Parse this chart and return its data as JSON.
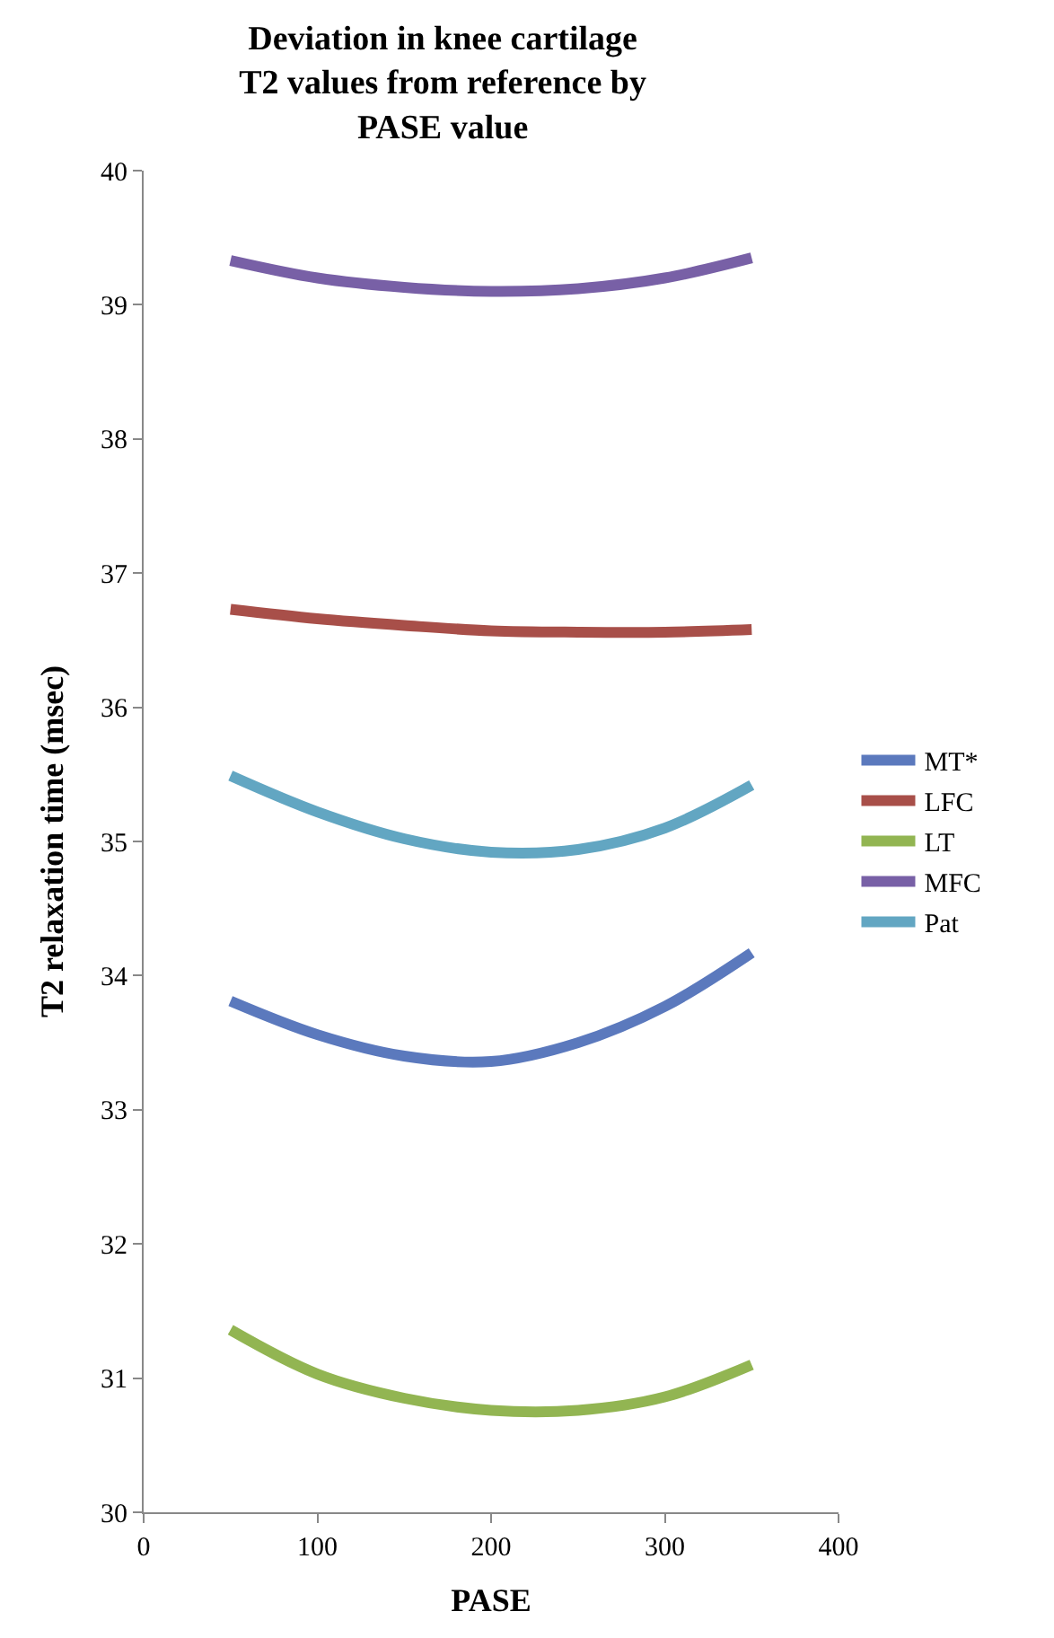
{
  "chart_data": {
    "type": "line",
    "title": "Deviation in knee cartilage\nT2 values from reference by\nPASE value",
    "xlabel": "PASE",
    "ylabel": "T2 relaxation time (msec)",
    "x": [
      50,
      100,
      150,
      200,
      250,
      300,
      350
    ],
    "series": [
      {
        "name": "MT*",
        "color": "#5b79bd",
        "values": [
          33.81,
          33.56,
          33.4,
          33.36,
          33.5,
          33.77,
          34.17
        ]
      },
      {
        "name": "LFC",
        "color": "#a84f49",
        "values": [
          36.73,
          36.66,
          36.61,
          36.57,
          36.56,
          36.56,
          36.58
        ]
      },
      {
        "name": "LT",
        "color": "#92b552",
        "values": [
          31.36,
          31.03,
          30.85,
          30.76,
          30.76,
          30.86,
          31.1
        ]
      },
      {
        "name": "MFC",
        "color": "#7860a6",
        "values": [
          39.33,
          39.2,
          39.13,
          39.1,
          39.12,
          39.2,
          39.35
        ]
      },
      {
        "name": "Pat",
        "color": "#62a6c2",
        "values": [
          35.49,
          35.22,
          35.02,
          34.92,
          34.94,
          35.1,
          35.42
        ]
      }
    ],
    "xlim": [
      0,
      400
    ],
    "xticks": [
      0,
      100,
      200,
      300,
      400
    ],
    "ylim": [
      30,
      40
    ],
    "yticks": [
      30,
      31,
      32,
      33,
      34,
      35,
      36,
      37,
      38,
      39,
      40
    ],
    "legend": "right",
    "marker": "none",
    "line_style": "solid"
  }
}
